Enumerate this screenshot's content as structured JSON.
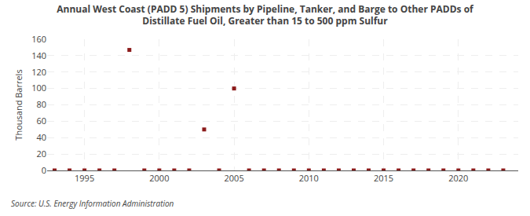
{
  "chart_data": {
    "type": "scatter",
    "title": "Annual West Coast (PADD 5) Shipments by Pipeline, Tanker, and Barge to Other PADDs of\nDistillate Fuel Oil, Greater than 15 to 500 ppm Sulfur",
    "ylabel": "Thousand Barrels",
    "annotations": [
      "Source: U.S. Energy Information Administration"
    ],
    "x": [
      1993,
      1994,
      1995,
      1996,
      1997,
      1998,
      1999,
      2000,
      2001,
      2002,
      2003,
      2004,
      2005,
      2006,
      2007,
      2008,
      2009,
      2010,
      2011,
      2012,
      2013,
      2014,
      2015,
      2016,
      2017,
      2018,
      2019,
      2020,
      2021,
      2022,
      2023
    ],
    "values": [
      0,
      0,
      0,
      0,
      0,
      147,
      0,
      0,
      0,
      0,
      50,
      0,
      100,
      0,
      0,
      0,
      0,
      0,
      0,
      0,
      0,
      0,
      0,
      0,
      0,
      0,
      0,
      0,
      0,
      0,
      0
    ],
    "color": "#8b1a1a",
    "marker": "square",
    "xlim": [
      1992.5,
      2024
    ],
    "ylim": [
      0,
      160
    ],
    "xticks": [
      1995,
      2000,
      2005,
      2010,
      2015,
      2020
    ],
    "yticks": [
      0,
      20,
      40,
      60,
      80,
      100,
      120,
      140,
      160
    ],
    "grid": true
  }
}
